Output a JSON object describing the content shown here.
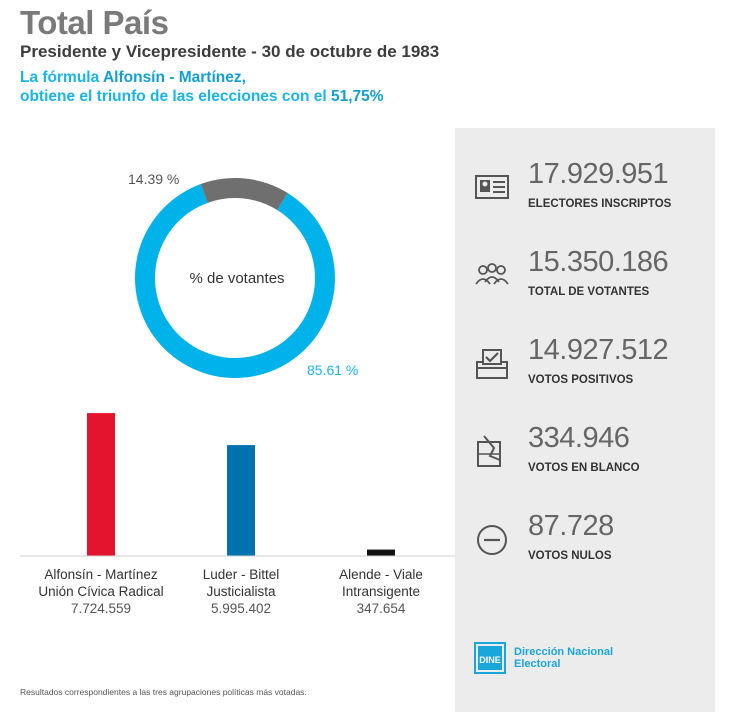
{
  "header": {
    "title": "Total País",
    "subtitle": "Presidente y Vicepresidente - 30 de octubre de 1983",
    "headline_prefix": "La fórmula ",
    "headline_names": "Alfonsín - Martínez,",
    "headline_line2": "obtiene el triunfo de las elecciones con el ",
    "headline_pct": "51,75%"
  },
  "colors": {
    "accent": "#19b5e6",
    "donut_turnout": "#00b2ea",
    "donut_abstention": "#6f6f6f",
    "panel_bg": "#ececec",
    "ucr": "#e3142c",
    "pj": "#0072b0",
    "pi": "#111111"
  },
  "chart_data": [
    {
      "type": "pie",
      "title": "",
      "center_label": "% de votantes",
      "series": [
        {
          "name": "",
          "value": 85.61,
          "label": "85.61 %"
        },
        {
          "name": "",
          "value": 14.39,
          "label": "14.39 %"
        }
      ]
    },
    {
      "type": "bar",
      "categories": [
        {
          "formula": "Alfonsín - Martínez",
          "party": "Unión Cívica Radical",
          "value_label": "7.724.559"
        },
        {
          "formula": "Luder - Bittel",
          "party": "Justicialista",
          "value_label": "5.995.402"
        },
        {
          "formula": "Alende - Viale",
          "party": "Intransigente",
          "value_label": "347.654"
        }
      ],
      "values": [
        7724559,
        5995402,
        347654
      ],
      "ylim": [
        0,
        8000000
      ],
      "grid": false
    }
  ],
  "stats": [
    {
      "icon": "id-card-icon",
      "value": "17.929.951",
      "label": "ELECTORES INSCRIPTOS"
    },
    {
      "icon": "people-icon",
      "value": "15.350.186",
      "label": "TOTAL DE VOTANTES"
    },
    {
      "icon": "ballot-box-icon",
      "value": "14.927.512",
      "label": "VOTOS POSITIVOS"
    },
    {
      "icon": "blank-vote-icon",
      "value": "334.946",
      "label": "VOTOS EN BLANCO"
    },
    {
      "icon": "minus-circle-icon",
      "value": "87.728",
      "label": "VOTOS NULOS"
    }
  ],
  "footnote": "Resultados correspondientes a las tres agrupaciones políticas más votadas.",
  "logo": {
    "mark": "DINE",
    "line1": "Dirección Nacional",
    "line2": "Electoral"
  }
}
